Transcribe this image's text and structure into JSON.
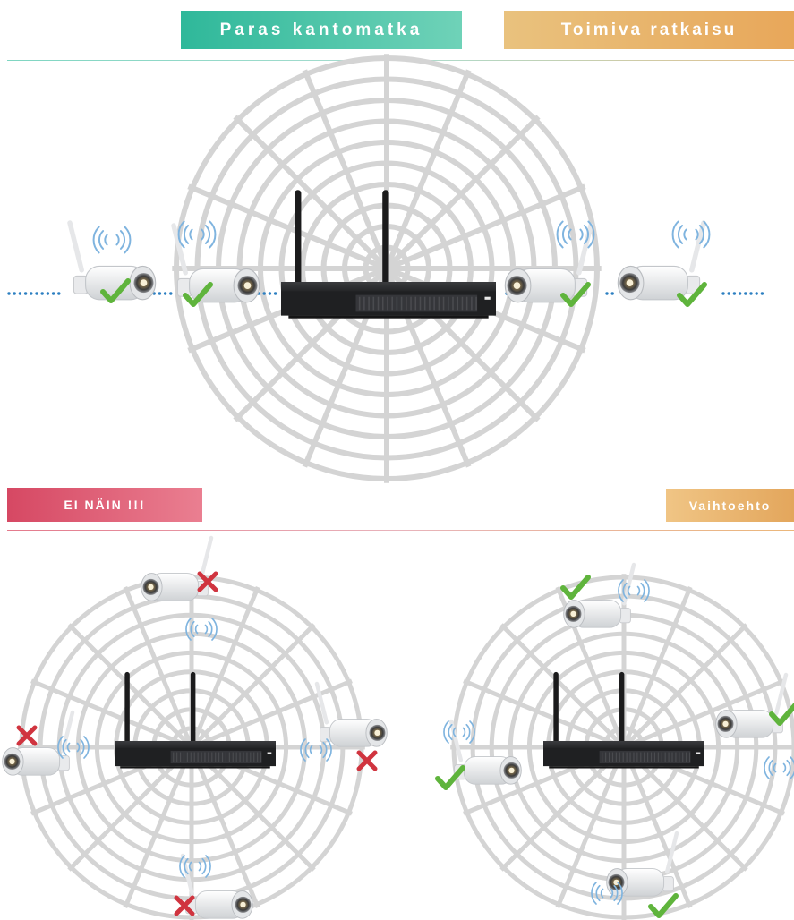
{
  "banners": {
    "range": "Paras kantomatka",
    "solution": "Toimiva ratkaisu",
    "wrong": "EI NÄIN !!!",
    "alternative": "Vaihtoehto"
  },
  "colors": {
    "teal_banner": "#2fb89a",
    "gold_banner": "#e8a75a",
    "red_banner": "#d64863",
    "web_lines": "#d4d4d4",
    "check": "#5fb43c",
    "cross": "#d0343f",
    "signal": "#7fb4df",
    "dots": "#2c7fc1",
    "nvr_body": "#2b2c2f"
  },
  "icons": [
    "wireless-nvr-icon",
    "camera-icon",
    "wifi-signal-icon",
    "check-icon",
    "cross-icon"
  ]
}
